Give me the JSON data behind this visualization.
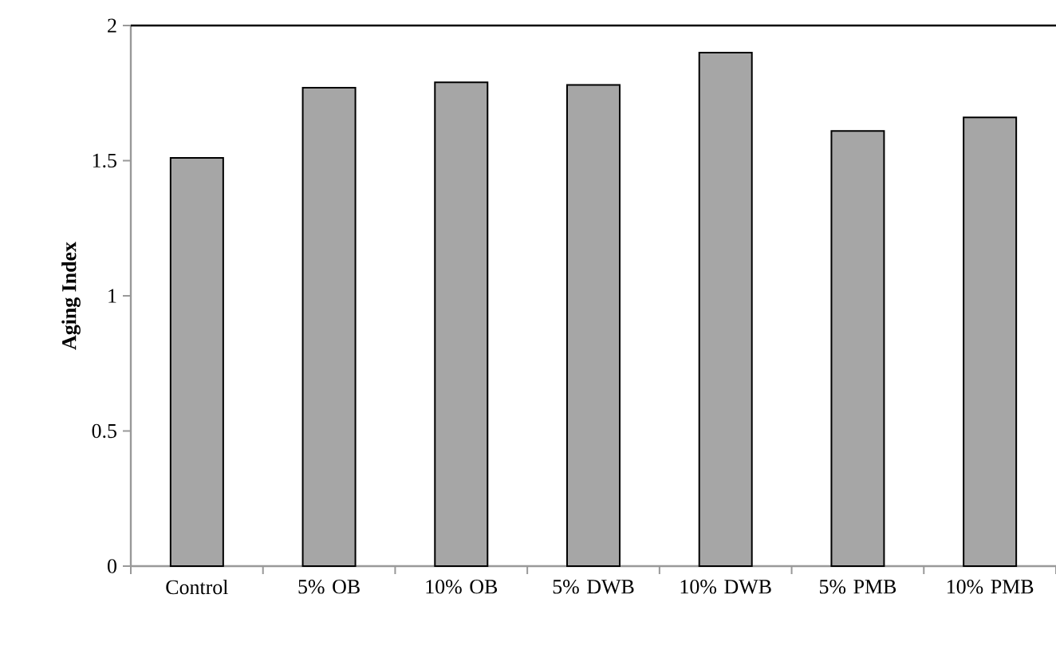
{
  "chart_data": {
    "type": "bar",
    "ylabel": "Aging Index",
    "categories": [
      "Control",
      "5% OB",
      "10% OB",
      "5% DWB",
      "10% DWB",
      "5% PMB",
      "10% PMB"
    ],
    "values": [
      1.51,
      1.77,
      1.79,
      1.78,
      1.9,
      1.61,
      1.66
    ],
    "color": "#a6a6a6",
    "ylim": [
      0,
      2
    ],
    "yticks": [
      0,
      0.5,
      1,
      1.5,
      2
    ],
    "grid": false
  }
}
